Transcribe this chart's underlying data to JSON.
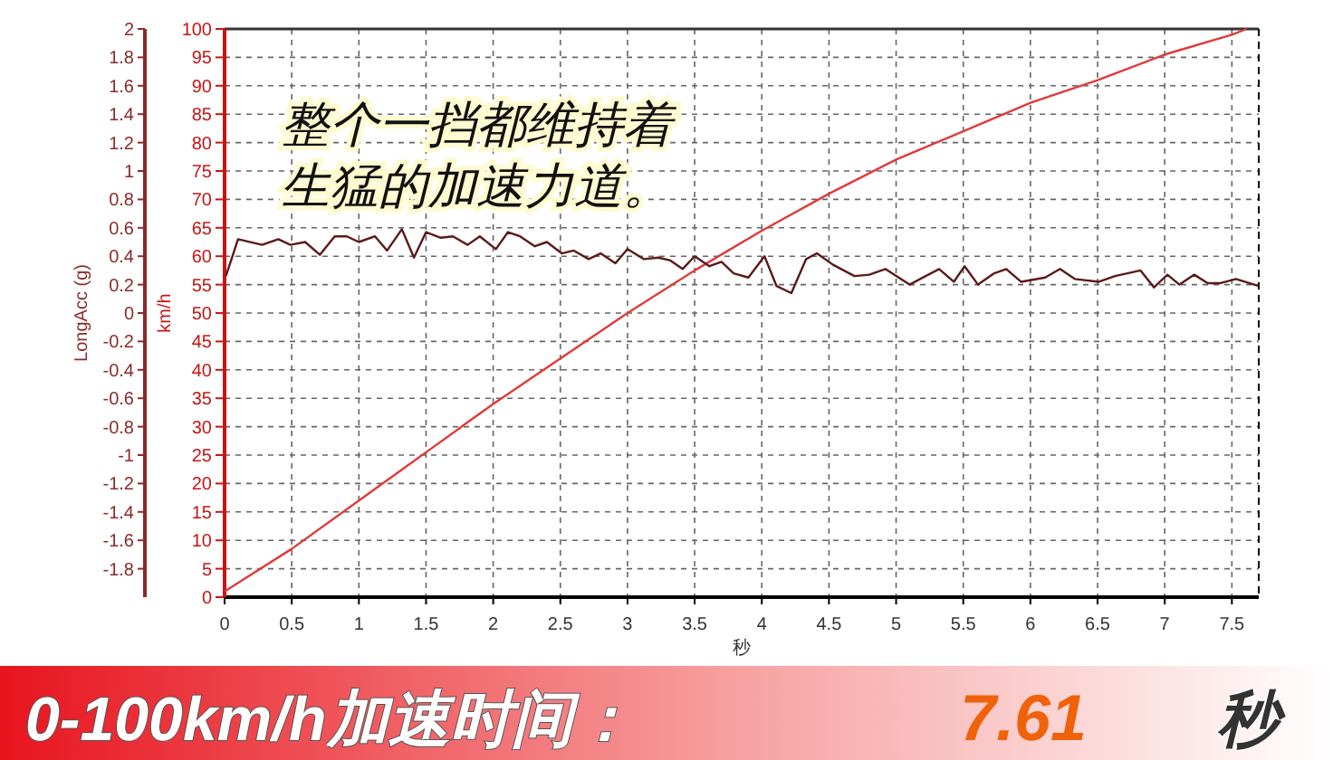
{
  "chart_data": {
    "type": "line",
    "xlabel": "秒",
    "ylabel": "km/h",
    "y2label": "LongAcc (g)",
    "xlim": [
      0,
      7.7
    ],
    "xticks": [
      0,
      0.5,
      1,
      1.5,
      2,
      2.5,
      3,
      3.5,
      4,
      4.5,
      5,
      5.5,
      6,
      6.5,
      7,
      7.5
    ],
    "ylim": [
      0,
      100
    ],
    "yticks": [
      0,
      5,
      10,
      15,
      20,
      25,
      30,
      35,
      40,
      45,
      50,
      55,
      60,
      65,
      70,
      75,
      80,
      85,
      90,
      95,
      100
    ],
    "y2lim": [
      -2,
      2
    ],
    "y2ticks": [
      -1.8,
      -1.6,
      -1.4,
      -1.2,
      -1,
      -0.8,
      -0.6,
      -0.4,
      -0.2,
      0,
      0.2,
      0.4,
      0.6,
      0.8,
      1,
      1.2,
      1.4,
      1.6,
      1.8,
      2
    ],
    "grid": true,
    "series": [
      {
        "color": "#e03a3a",
        "axis": "y",
        "x": [
          0,
          0.5,
          1,
          1.5,
          2,
          2.5,
          3,
          3.5,
          4,
          4.5,
          5,
          5.5,
          6,
          6.5,
          7,
          7.5,
          7.61
        ],
        "values": [
          1,
          8.5,
          17,
          25.5,
          34,
          42,
          50,
          57.5,
          64.5,
          71,
          77,
          82,
          87,
          91,
          95.5,
          99,
          100
        ]
      },
      {
        "color": "#5a1a1a",
        "axis": "y2",
        "x": [
          0.01,
          0.1,
          0.28,
          0.4,
          0.49,
          0.6,
          0.71,
          0.82,
          0.91,
          1.0,
          1.12,
          1.21,
          1.32,
          1.41,
          1.5,
          1.61,
          1.7,
          1.81,
          1.9,
          2.02,
          2.11,
          2.2,
          2.31,
          2.4,
          2.51,
          2.6,
          2.71,
          2.8,
          2.91,
          3.0,
          3.12,
          3.23,
          3.32,
          3.41,
          3.5,
          3.61,
          3.7,
          3.79,
          3.9,
          4.02,
          4.11,
          4.22,
          4.33,
          4.41,
          4.53,
          4.69,
          4.8,
          4.92,
          5.1,
          5.32,
          5.43,
          5.51,
          5.61,
          5.73,
          5.82,
          5.93,
          6.11,
          6.22,
          6.33,
          6.51,
          6.63,
          6.82,
          6.92,
          7.02,
          7.11,
          7.22,
          7.32,
          7.41,
          7.53,
          7.7
        ],
        "values": [
          0.26,
          0.52,
          0.48,
          0.52,
          0.48,
          0.5,
          0.41,
          0.54,
          0.54,
          0.5,
          0.54,
          0.44,
          0.59,
          0.39,
          0.57,
          0.53,
          0.54,
          0.48,
          0.54,
          0.45,
          0.57,
          0.54,
          0.47,
          0.5,
          0.42,
          0.44,
          0.38,
          0.42,
          0.35,
          0.45,
          0.38,
          0.39,
          0.37,
          0.31,
          0.4,
          0.33,
          0.36,
          0.28,
          0.25,
          0.4,
          0.19,
          0.14,
          0.38,
          0.42,
          0.34,
          0.26,
          0.27,
          0.31,
          0.2,
          0.31,
          0.22,
          0.33,
          0.2,
          0.28,
          0.31,
          0.22,
          0.25,
          0.31,
          0.24,
          0.22,
          0.26,
          0.3,
          0.18,
          0.27,
          0.2,
          0.27,
          0.21,
          0.21,
          0.24,
          0.19
        ]
      }
    ],
    "annotations": [
      "整个一挡都维持着",
      "生猛的加速力道。",
      "0-100km/h加速时间：",
      "7.61",
      "秒"
    ]
  }
}
